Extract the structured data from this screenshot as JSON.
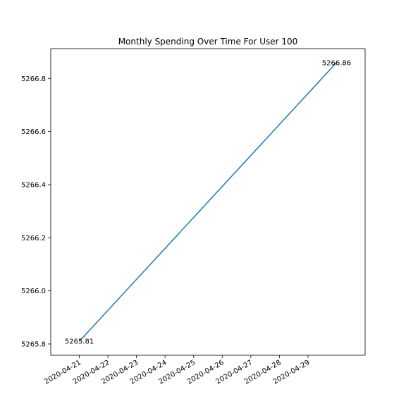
{
  "chart_data": {
    "type": "line",
    "title": "Monthly Spending Over Time For User 100",
    "xlabel": "",
    "ylabel": "",
    "x": [
      "2020-04-21",
      "2020-04-30"
    ],
    "series": [
      {
        "values": [
          5265.81,
          5266.86
        ],
        "color": "#1f77b4"
      }
    ],
    "data_labels": [
      "5265.81",
      "5266.86"
    ],
    "x_ticks": [
      "2020-04-21",
      "2020-04-22",
      "2020-04-23",
      "2020-04-24",
      "2020-04-25",
      "2020-04-26",
      "2020-04-27",
      "2020-04-28",
      "2020-04-29"
    ],
    "y_ticks": [
      "5265.8",
      "5266.0",
      "5266.2",
      "5266.4",
      "5266.6",
      "5266.8"
    ],
    "xlim": [
      "2020-04-20",
      "2020-04-31"
    ],
    "ylim": [
      5265.7575,
      5266.9125
    ],
    "grid": false,
    "legend": false
  }
}
